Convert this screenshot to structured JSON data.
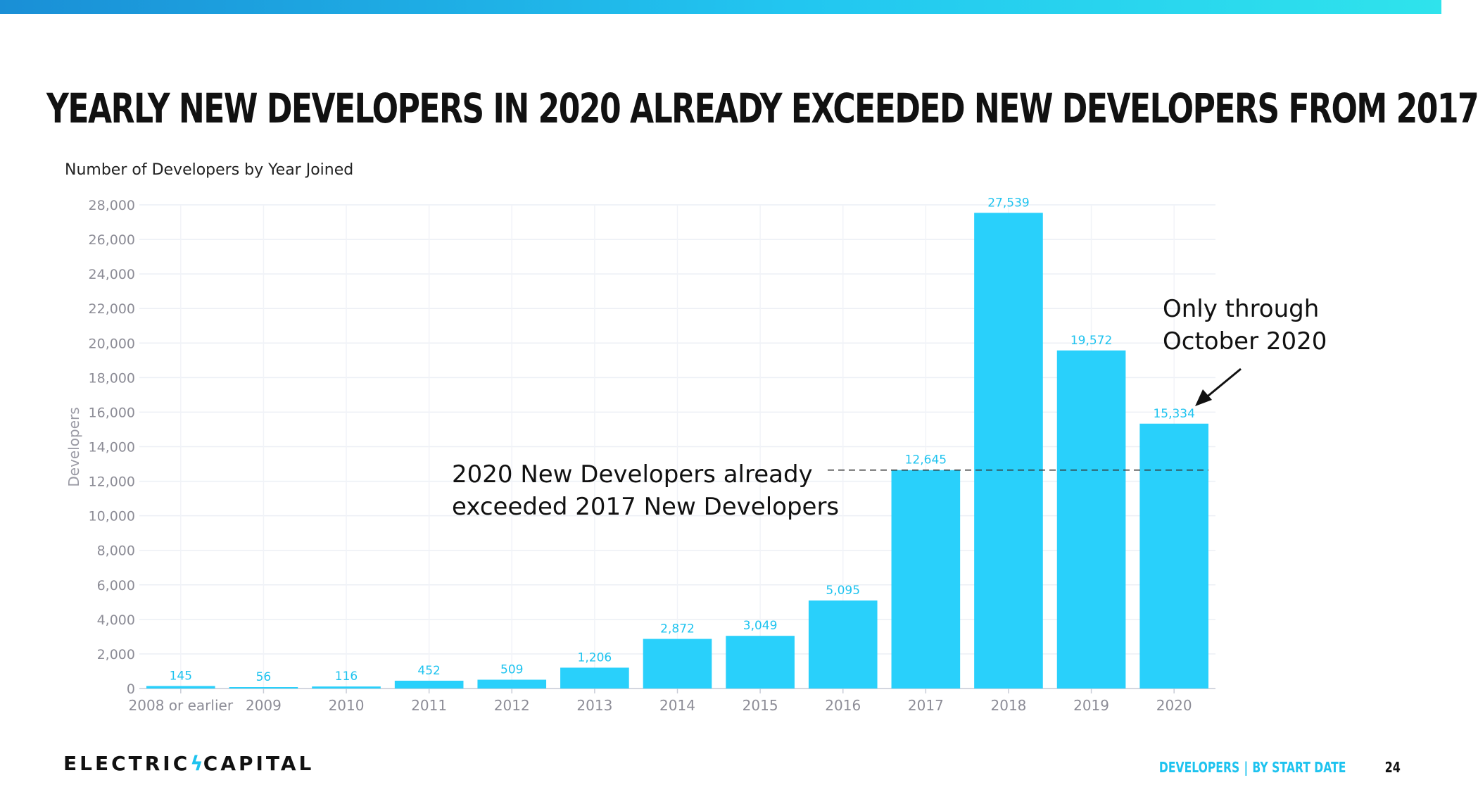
{
  "slide": {
    "title": "Yearly New Developers in 2020 Already Exceeded New Developers From 2017",
    "page_number": "24",
    "footer_section": "DEVELOPERS",
    "footer_subsection": "BY START DATE",
    "logo_left": "ELECTRIC",
    "logo_right": "CAPITAL"
  },
  "colors": {
    "bar": "#29d0fb",
    "label": "#1ec3ef",
    "accent": "#1ec3ef"
  },
  "chart_data": {
    "type": "bar",
    "title": "Number of Developers by Year Joined",
    "xlabel": "",
    "ylabel": "Developers",
    "ylim": [
      0,
      28000
    ],
    "yticks": [
      0,
      2000,
      4000,
      6000,
      8000,
      10000,
      12000,
      14000,
      16000,
      18000,
      20000,
      22000,
      24000,
      26000,
      28000
    ],
    "ytick_labels": [
      "0",
      "2,000",
      "4,000",
      "6,000",
      "8,000",
      "10,000",
      "12,000",
      "14,000",
      "16,000",
      "18,000",
      "20,000",
      "22,000",
      "24,000",
      "26,000",
      "28,000"
    ],
    "categories": [
      "2008 or earlier",
      "2009",
      "2010",
      "2011",
      "2012",
      "2013",
      "2014",
      "2015",
      "2016",
      "2017",
      "2018",
      "2019",
      "2020"
    ],
    "values": [
      145,
      56,
      116,
      452,
      509,
      1206,
      2872,
      3049,
      5095,
      12645,
      27539,
      19572,
      15334
    ],
    "value_labels": [
      "145",
      "56",
      "116",
      "452",
      "509",
      "1,206",
      "2,872",
      "3,049",
      "5,095",
      "12,645",
      "27,539",
      "19,572",
      "15,334"
    ],
    "grid": true,
    "annotations": [
      {
        "id": "compare",
        "lines": [
          "2020 New Developers already",
          "exceeded 2017 New Developers"
        ],
        "reference_value": 12645
      },
      {
        "id": "partial",
        "lines": [
          "Only through",
          "October 2020"
        ],
        "target_category": "2020"
      }
    ]
  }
}
